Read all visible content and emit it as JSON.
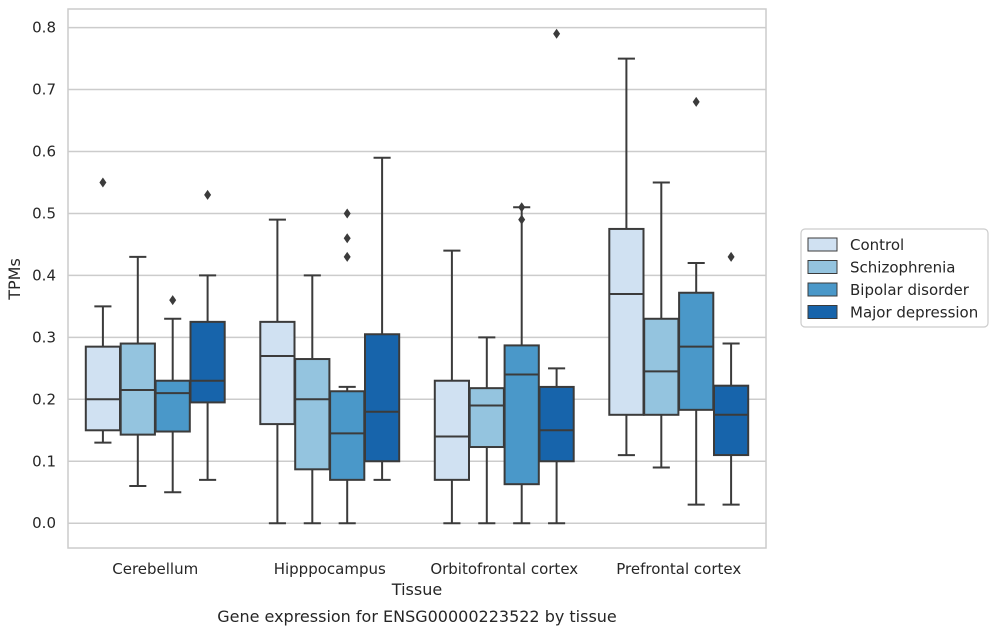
{
  "chart_data": {
    "type": "box",
    "title": "",
    "caption": "Gene expression for ENSG00000223522 by tissue",
    "xlabel": "Tissue",
    "ylabel": "TPMs",
    "ylim": [
      -0.04,
      0.83
    ],
    "yticks": [
      0.0,
      0.1,
      0.2,
      0.3,
      0.4,
      0.5,
      0.6,
      0.7,
      0.8
    ],
    "ytick_labels": [
      "0.0",
      "0.1",
      "0.2",
      "0.3",
      "0.4",
      "0.5",
      "0.6",
      "0.7",
      "0.8"
    ],
    "grid": true,
    "legend_position": "right",
    "categories": [
      "Cerebellum",
      "Hipppocampus",
      "Orbitofrontal cortex",
      "Prefrontal cortex"
    ],
    "series": [
      {
        "name": "Control",
        "color": "#d0e1f2",
        "boxes": [
          {
            "whislo": 0.13,
            "q1": 0.15,
            "med": 0.2,
            "q3": 0.285,
            "whishi": 0.35,
            "fliers": [
              0.55
            ]
          },
          {
            "whislo": 0.0,
            "q1": 0.16,
            "med": 0.27,
            "q3": 0.325,
            "whishi": 0.49,
            "fliers": []
          },
          {
            "whislo": 0.0,
            "q1": 0.07,
            "med": 0.14,
            "q3": 0.23,
            "whishi": 0.44,
            "fliers": []
          },
          {
            "whislo": 0.11,
            "q1": 0.175,
            "med": 0.37,
            "q3": 0.475,
            "whishi": 0.75,
            "fliers": []
          }
        ]
      },
      {
        "name": "Schizophrenia",
        "color": "#94c4df",
        "boxes": [
          {
            "whislo": 0.06,
            "q1": 0.143,
            "med": 0.215,
            "q3": 0.29,
            "whishi": 0.43,
            "fliers": []
          },
          {
            "whislo": 0.0,
            "q1": 0.087,
            "med": 0.2,
            "q3": 0.265,
            "whishi": 0.4,
            "fliers": []
          },
          {
            "whislo": 0.0,
            "q1": 0.123,
            "med": 0.19,
            "q3": 0.218,
            "whishi": 0.3,
            "fliers": []
          },
          {
            "whislo": 0.09,
            "q1": 0.175,
            "med": 0.245,
            "q3": 0.33,
            "whishi": 0.55,
            "fliers": []
          }
        ]
      },
      {
        "name": "Bipolar disorder",
        "color": "#4a98c9",
        "boxes": [
          {
            "whislo": 0.05,
            "q1": 0.148,
            "med": 0.21,
            "q3": 0.23,
            "whishi": 0.33,
            "fliers": [
              0.36
            ]
          },
          {
            "whislo": 0.0,
            "q1": 0.07,
            "med": 0.145,
            "q3": 0.213,
            "whishi": 0.22,
            "fliers": [
              0.43,
              0.46,
              0.5
            ]
          },
          {
            "whislo": 0.0,
            "q1": 0.063,
            "med": 0.24,
            "q3": 0.287,
            "whishi": 0.51,
            "fliers": [
              0.49,
              0.51
            ]
          },
          {
            "whislo": 0.03,
            "q1": 0.183,
            "med": 0.285,
            "q3": 0.372,
            "whishi": 0.42,
            "fliers": [
              0.68
            ]
          }
        ]
      },
      {
        "name": "Major depression",
        "color": "#1764ab",
        "boxes": [
          {
            "whislo": 0.07,
            "q1": 0.195,
            "med": 0.23,
            "q3": 0.325,
            "whishi": 0.4,
            "fliers": [
              0.53
            ]
          },
          {
            "whislo": 0.07,
            "q1": 0.1,
            "med": 0.18,
            "q3": 0.305,
            "whishi": 0.59,
            "fliers": []
          },
          {
            "whislo": 0.0,
            "q1": 0.1,
            "med": 0.15,
            "q3": 0.22,
            "whishi": 0.25,
            "fliers": [
              0.79
            ]
          },
          {
            "whislo": 0.03,
            "q1": 0.11,
            "med": 0.175,
            "q3": 0.222,
            "whishi": 0.29,
            "fliers": [
              0.43
            ]
          }
        ]
      }
    ]
  }
}
